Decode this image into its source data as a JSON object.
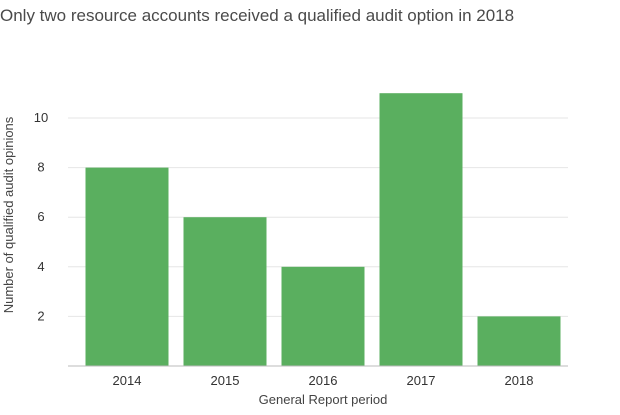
{
  "chart_data": {
    "type": "bar",
    "title": "Only two resource accounts received a qualified audit option in 2018",
    "xlabel": "General Report period",
    "ylabel": "Number of qualified audit opinions",
    "categories": [
      "2014",
      "2015",
      "2016",
      "2017",
      "2018"
    ],
    "values": [
      8,
      6,
      4,
      11,
      2
    ],
    "yticks": [
      2,
      4,
      6,
      8,
      10
    ],
    "ylim": [
      0,
      12
    ],
    "grid": true,
    "legend": "none",
    "bar_color": "#5aaf5f",
    "grid_color": "#e6e6e6",
    "axis_color": "#bbbbbb"
  }
}
